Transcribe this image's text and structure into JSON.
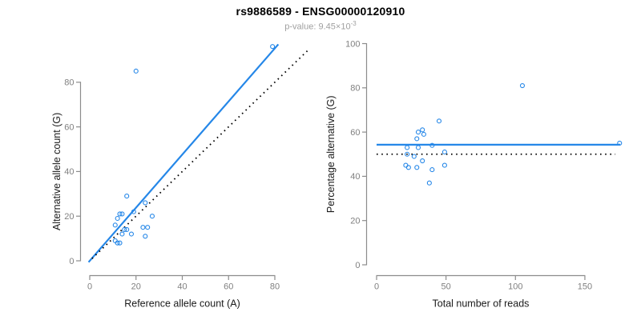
{
  "header": {
    "title": "rs9886589 - ENSG00000120910",
    "subtitle_prefix": "p-value: ",
    "pvalue_mantissa": "9.45",
    "pvalue_times": "×10",
    "pvalue_exponent": "-3"
  },
  "colors": {
    "accent_blue": "#2587E8",
    "axis_gray": "#8c8c8c",
    "tick_text_gray": "#808080",
    "subtitle_gray": "#a0a0a0",
    "label_black": "#1a1a1a",
    "dotted_black": "#000000"
  },
  "chart_data": [
    {
      "type": "scatter",
      "name": "allele-counts-scatter",
      "xlabel": "Reference allele count (A)",
      "ylabel": "Alternative allele count (G)",
      "xticks": [
        0,
        20,
        40,
        60,
        80
      ],
      "yticks": [
        0,
        20,
        40,
        60,
        80
      ],
      "xlim": [
        0,
        95
      ],
      "ylim": [
        0,
        97
      ],
      "grid": false,
      "marker": "open-circle",
      "points": [
        [
          20,
          85
        ],
        [
          79,
          96
        ],
        [
          16,
          29
        ],
        [
          24,
          26
        ],
        [
          19,
          22
        ],
        [
          27,
          20
        ],
        [
          13,
          21
        ],
        [
          14,
          21
        ],
        [
          12,
          19
        ],
        [
          11,
          16
        ],
        [
          15,
          14
        ],
        [
          16,
          14
        ],
        [
          14,
          12
        ],
        [
          18,
          12
        ],
        [
          23,
          15
        ],
        [
          25,
          15
        ],
        [
          24,
          11
        ],
        [
          11,
          9
        ],
        [
          12,
          8
        ],
        [
          13,
          8
        ]
      ],
      "lines": [
        {
          "name": "fit-line",
          "style": "solid",
          "color_key": "accent_blue",
          "slope": 1.19,
          "intercept": 0,
          "xrange": [
            -0.5,
            81.5
          ]
        },
        {
          "name": "identity-line",
          "style": "dotted",
          "color_key": "dotted_black",
          "slope": 1,
          "intercept": 0,
          "xrange": [
            1,
            95
          ]
        }
      ]
    },
    {
      "type": "scatter",
      "name": "percentage-vs-reads-scatter",
      "xlabel": "Total number of reads",
      "ylabel": "Percentage alternative (G)",
      "xticks": [
        0,
        50,
        100,
        150
      ],
      "yticks": [
        0,
        20,
        40,
        60,
        80,
        100
      ],
      "xlim": [
        0,
        178
      ],
      "ylim": [
        0,
        100
      ],
      "grid": false,
      "marker": "open-circle",
      "points": [
        [
          105,
          81
        ],
        [
          175,
          55
        ],
        [
          45,
          65
        ],
        [
          30,
          60
        ],
        [
          33,
          61
        ],
        [
          34,
          59
        ],
        [
          29,
          57
        ],
        [
          30,
          53
        ],
        [
          40,
          54
        ],
        [
          22,
          53
        ],
        [
          22,
          50
        ],
        [
          27,
          49
        ],
        [
          49,
          51
        ],
        [
          33,
          47
        ],
        [
          21,
          45
        ],
        [
          23,
          44
        ],
        [
          29,
          44
        ],
        [
          40,
          43
        ],
        [
          49,
          45
        ],
        [
          38,
          37
        ]
      ],
      "lines": [
        {
          "name": "mean-percentage-line",
          "style": "solid",
          "color_key": "accent_blue",
          "value": 54.3,
          "xrange": [
            0,
            175.5
          ]
        },
        {
          "name": "expected-50pct-line",
          "style": "dotted",
          "color_key": "dotted_black",
          "value": 50,
          "xrange": [
            0,
            172
          ]
        }
      ]
    }
  ]
}
